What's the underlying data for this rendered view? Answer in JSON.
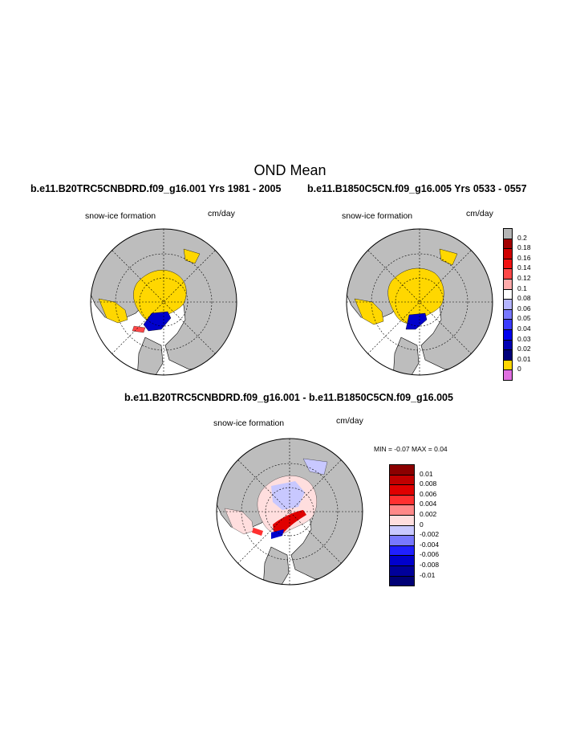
{
  "figure": {
    "title": "OND Mean",
    "panels": [
      {
        "case": "b.e11.B20TRC5CNBDRD.f09_g16.001  Yrs 1981 - 2005",
        "variable": "snow-ice formation",
        "units": "cm/day"
      },
      {
        "case": "b.e11.B1850C5CN.f09_g16.005  Yrs 0533 - 0557",
        "variable": "snow-ice formation",
        "units": "cm/day"
      }
    ],
    "diff_panel": {
      "case": "b.e11.B20TRC5CNBDRD.f09_g16.001 - b.e11.B1850C5CN.f09_g16.005",
      "variable": "snow-ice formation",
      "units": "cm/day",
      "minmax": "MIN =  -0.07 MAX =   0.04"
    }
  },
  "colorbars": {
    "main": {
      "labels": [
        "0.2",
        "0.18",
        "0.16",
        "0.14",
        "0.12",
        "0.1",
        "0.08",
        "0.06",
        "0.05",
        "0.04",
        "0.03",
        "0.02",
        "0.01",
        "0"
      ],
      "colors": [
        "#b5b5b5",
        "#a30000",
        "#d00000",
        "#f21212",
        "#ff4848",
        "#ffaaaa",
        "#ffffff",
        "#b4b4ff",
        "#7878ff",
        "#3c3cff",
        "#0000ee",
        "#0000b4",
        "#00007a",
        "#ffd700",
        "#e070e0"
      ]
    },
    "diff": {
      "labels": [
        "0.01",
        "0.008",
        "0.006",
        "0.004",
        "0.002",
        "0",
        "-0.002",
        "-0.004",
        "-0.006",
        "-0.008",
        "-0.01"
      ],
      "colors": [
        "#8b0000",
        "#c00000",
        "#e00000",
        "#ff3030",
        "#ff8888",
        "#ffdede",
        "#c8c8ff",
        "#7878ff",
        "#2020ff",
        "#0000cc",
        "#00009a",
        "#000075"
      ]
    }
  }
}
